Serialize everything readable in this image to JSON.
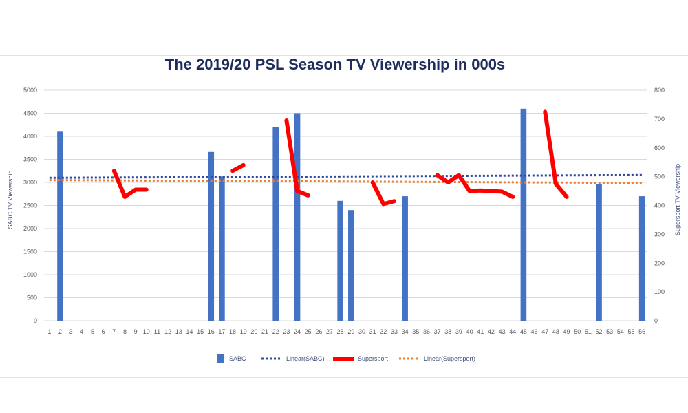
{
  "chart_data": {
    "type": "bar",
    "title": "The 2019/20 PSL Season TV Viewership in 000s",
    "ylabel_left": "SABC TV Viewership",
    "ylabel_right": "Supersport TV Viewership",
    "ylim_left": [
      0,
      5000
    ],
    "ylim_right": [
      0,
      800
    ],
    "yticks_left": [
      "0",
      "500",
      "1000",
      "1500",
      "2000",
      "2500",
      "3000",
      "3500",
      "4000",
      "4500",
      "5000"
    ],
    "yticks_right": [
      "0",
      "100",
      "200",
      "300",
      "400",
      "500",
      "600",
      "700",
      "800"
    ],
    "categories": [
      "1",
      "2",
      "3",
      "4",
      "5",
      "6",
      "7",
      "8",
      "9",
      "10",
      "11",
      "12",
      "13",
      "14",
      "15",
      "16",
      "17",
      "18",
      "19",
      "20",
      "21",
      "22",
      "23",
      "24",
      "25",
      "26",
      "27",
      "28",
      "29",
      "30",
      "31",
      "32",
      "33",
      "34",
      "35",
      "36",
      "37",
      "38",
      "39",
      "40",
      "41",
      "42",
      "43",
      "44",
      "45",
      "46",
      "47",
      "48",
      "49",
      "50",
      "51",
      "52",
      "53",
      "54",
      "55",
      "56"
    ],
    "grid": true,
    "legend_position": "bottom",
    "series": [
      {
        "name": "SABC",
        "type": "bar",
        "axis": "left",
        "color": "#4472c4",
        "values": [
          null,
          4100,
          null,
          null,
          null,
          null,
          null,
          null,
          null,
          null,
          null,
          null,
          null,
          null,
          null,
          3660,
          3130,
          null,
          null,
          null,
          null,
          4200,
          null,
          4500,
          null,
          null,
          null,
          2600,
          2400,
          null,
          null,
          null,
          null,
          2700,
          null,
          null,
          null,
          null,
          null,
          null,
          null,
          null,
          null,
          null,
          4600,
          null,
          null,
          null,
          null,
          null,
          null,
          2960,
          null,
          null,
          null,
          2700
        ]
      },
      {
        "name": "Linear(SABC)",
        "type": "trendline",
        "axis": "left",
        "color": "#2e4a9e",
        "style": "dotted",
        "start": [
          1,
          3100
        ],
        "end": [
          56,
          3160
        ]
      },
      {
        "name": "Supersport",
        "type": "line",
        "axis": "right",
        "color": "#ff0000",
        "values": [
          null,
          null,
          null,
          null,
          null,
          null,
          520,
          430,
          455,
          455,
          null,
          null,
          null,
          null,
          null,
          null,
          null,
          520,
          540,
          null,
          null,
          null,
          695,
          450,
          435,
          null,
          null,
          null,
          null,
          null,
          480,
          405,
          415,
          null,
          null,
          null,
          505,
          480,
          505,
          450,
          452,
          450,
          448,
          430,
          null,
          null,
          725,
          475,
          430,
          null,
          null,
          null,
          null,
          null,
          null,
          null
        ]
      },
      {
        "name": "Linear(Supersport)",
        "type": "trendline",
        "axis": "right",
        "color": "#ed7d31",
        "style": "dotted",
        "start": [
          1,
          488
        ],
        "end": [
          56,
          478
        ]
      }
    ]
  }
}
